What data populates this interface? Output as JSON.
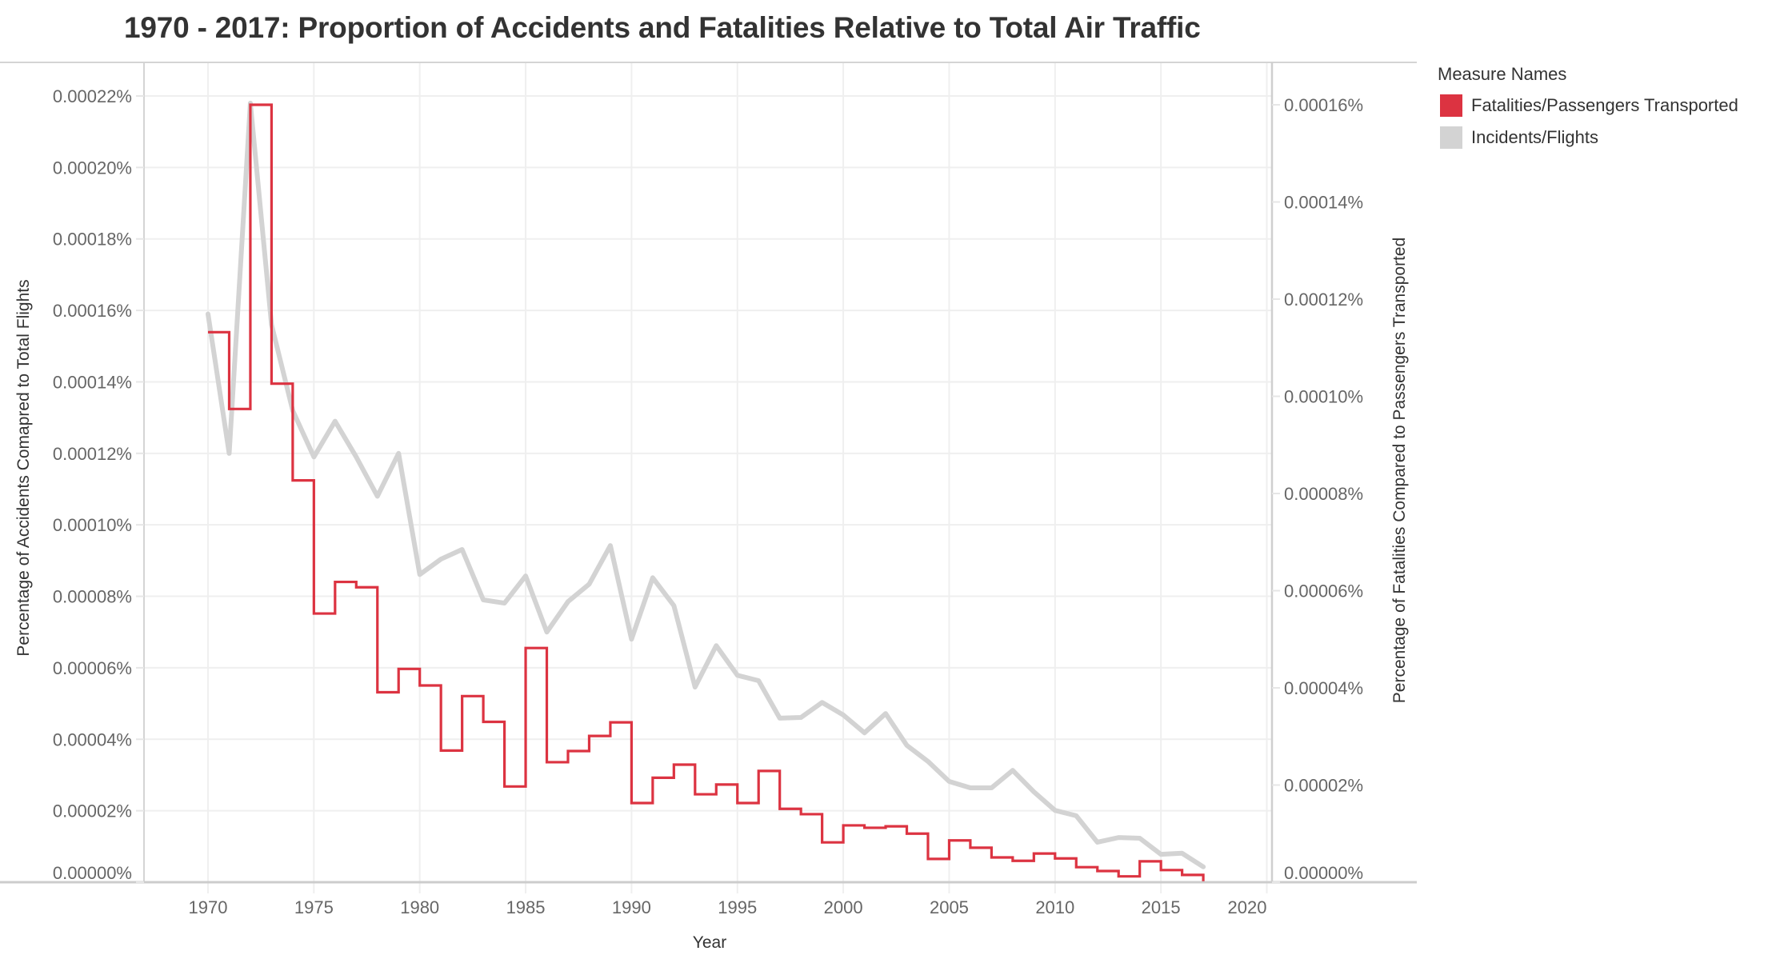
{
  "chart_data": {
    "type": "line",
    "title": "1970 - 2017: Proportion of Accidents and Fatalities Relative to Total Air Traffic",
    "xlabel": "Year",
    "ylabel_left": "Percentage of Accidents Comapred to Total Flights",
    "ylabel_right": "Percentage of Fatalities Compared to Passengers Transported",
    "x_ticks": [
      "1970",
      "1975",
      "1980",
      "1985",
      "1990",
      "1995",
      "2000",
      "2005",
      "2010",
      "2015",
      "2020"
    ],
    "xlim": [
      1967,
      2021.5
    ],
    "y_left_ticks": [
      "0.00000%",
      "0.00002%",
      "0.00004%",
      "0.00006%",
      "0.00008%",
      "0.00010%",
      "0.00012%",
      "0.00014%",
      "0.00016%",
      "0.00018%",
      "0.00020%",
      "0.00022%"
    ],
    "y_left_lim": [
      0,
      0.00022
    ],
    "y_right_ticks": [
      "0.00000%",
      "0.00002%",
      "0.00004%",
      "0.00006%",
      "0.00008%",
      "0.00010%",
      "0.00012%",
      "0.00014%",
      "0.00016%"
    ],
    "y_right_lim": [
      0,
      0.00016
    ],
    "grid": true,
    "legend": {
      "title": "Measure Names",
      "position": "top-right"
    },
    "x": [
      1970,
      1971,
      1972,
      1973,
      1974,
      1975,
      1976,
      1977,
      1978,
      1979,
      1980,
      1981,
      1982,
      1983,
      1984,
      1985,
      1986,
      1987,
      1988,
      1989,
      1990,
      1991,
      1992,
      1993,
      1994,
      1995,
      1996,
      1997,
      1998,
      1999,
      2000,
      2001,
      2002,
      2003,
      2004,
      2005,
      2006,
      2007,
      2008,
      2009,
      2010,
      2011,
      2012,
      2013,
      2014,
      2015,
      2016,
      2017
    ],
    "series": [
      {
        "name": "Fatalities/Passengers Transported",
        "axis": "right",
        "style": "step",
        "color": "#DC3341",
        "unit": "%",
        "values": [
          0.0001132,
          9.74e-05,
          0.00016,
          0.0001026,
          8.27e-05,
          5.53e-05,
          6.18e-05,
          6.07e-05,
          3.91e-05,
          4.39e-05,
          4.05e-05,
          2.71e-05,
          3.83e-05,
          3.3e-05,
          1.97e-05,
          4.82e-05,
          2.47e-05,
          2.7e-05,
          3.01e-05,
          3.29e-05,
          1.63e-05,
          2.15e-05,
          2.42e-05,
          1.81e-05,
          2.01e-05,
          1.63e-05,
          2.29e-05,
          1.51e-05,
          1.4e-05,
          8.2e-06,
          1.17e-05,
          1.12e-05,
          1.15e-05,
          1e-05,
          4.8e-06,
          8.6e-06,
          7.1e-06,
          5.1e-06,
          4.4e-06,
          5.9e-06,
          4.9e-06,
          3.1e-06,
          2.3e-06,
          1.2e-06,
          4.3e-06,
          2.5e-06,
          1.5e-06,
          2e-07
        ]
      },
      {
        "name": "Incidents/Flights",
        "axis": "left",
        "style": "line",
        "color": "#D3D3D3",
        "unit": "%",
        "values": [
          0.000159,
          0.00012,
          0.000218,
          0.000156,
          0.000132,
          0.000119,
          0.000129,
          0.000119,
          0.000108,
          0.00012,
          8.61e-05,
          9.04e-05,
          9.31e-05,
          7.9e-05,
          7.81e-05,
          8.57e-05,
          7e-05,
          7.85e-05,
          8.34e-05,
          9.42e-05,
          6.8e-05,
          8.52e-05,
          7.74e-05,
          5.46e-05,
          6.62e-05,
          5.79e-05,
          5.64e-05,
          4.59e-05,
          4.61e-05,
          5.03e-05,
          4.68e-05,
          4.18e-05,
          4.72e-05,
          3.83e-05,
          3.38e-05,
          2.82e-05,
          2.64e-05,
          2.64e-05,
          3.13e-05,
          2.53e-05,
          2.01e-05,
          1.86e-05,
          1.12e-05,
          1.25e-05,
          1.23e-05,
          7.8e-06,
          8.1e-06,
          4.3e-06
        ]
      }
    ]
  }
}
